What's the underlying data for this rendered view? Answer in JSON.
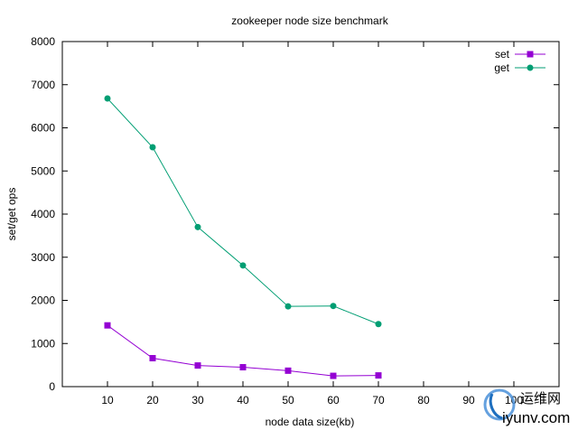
{
  "chart_data": {
    "type": "line",
    "title": "zookeeper node size benchmark",
    "xlabel": "node data size(kb)",
    "ylabel": "set/get ops",
    "xlim": [
      0,
      110
    ],
    "ylim": [
      0,
      8000
    ],
    "x_ticks": [
      10,
      20,
      30,
      40,
      50,
      60,
      70,
      80,
      90,
      100
    ],
    "y_ticks": [
      0,
      1000,
      2000,
      3000,
      4000,
      5000,
      6000,
      7000,
      8000
    ],
    "grid": false,
    "legend_position": "top-right",
    "x": [
      10,
      20,
      30,
      40,
      50,
      60,
      70
    ],
    "series": [
      {
        "name": "set",
        "values": [
          1420,
          660,
          490,
          450,
          370,
          250,
          260
        ]
      },
      {
        "name": "get",
        "values": [
          6680,
          5550,
          3700,
          2810,
          1860,
          1870,
          1450
        ]
      }
    ]
  },
  "colors": {
    "set": "#9400d3",
    "get": "#009e73",
    "axis": "#000000"
  },
  "watermark": {
    "brand": "运维网",
    "url": "iyunv.com"
  }
}
